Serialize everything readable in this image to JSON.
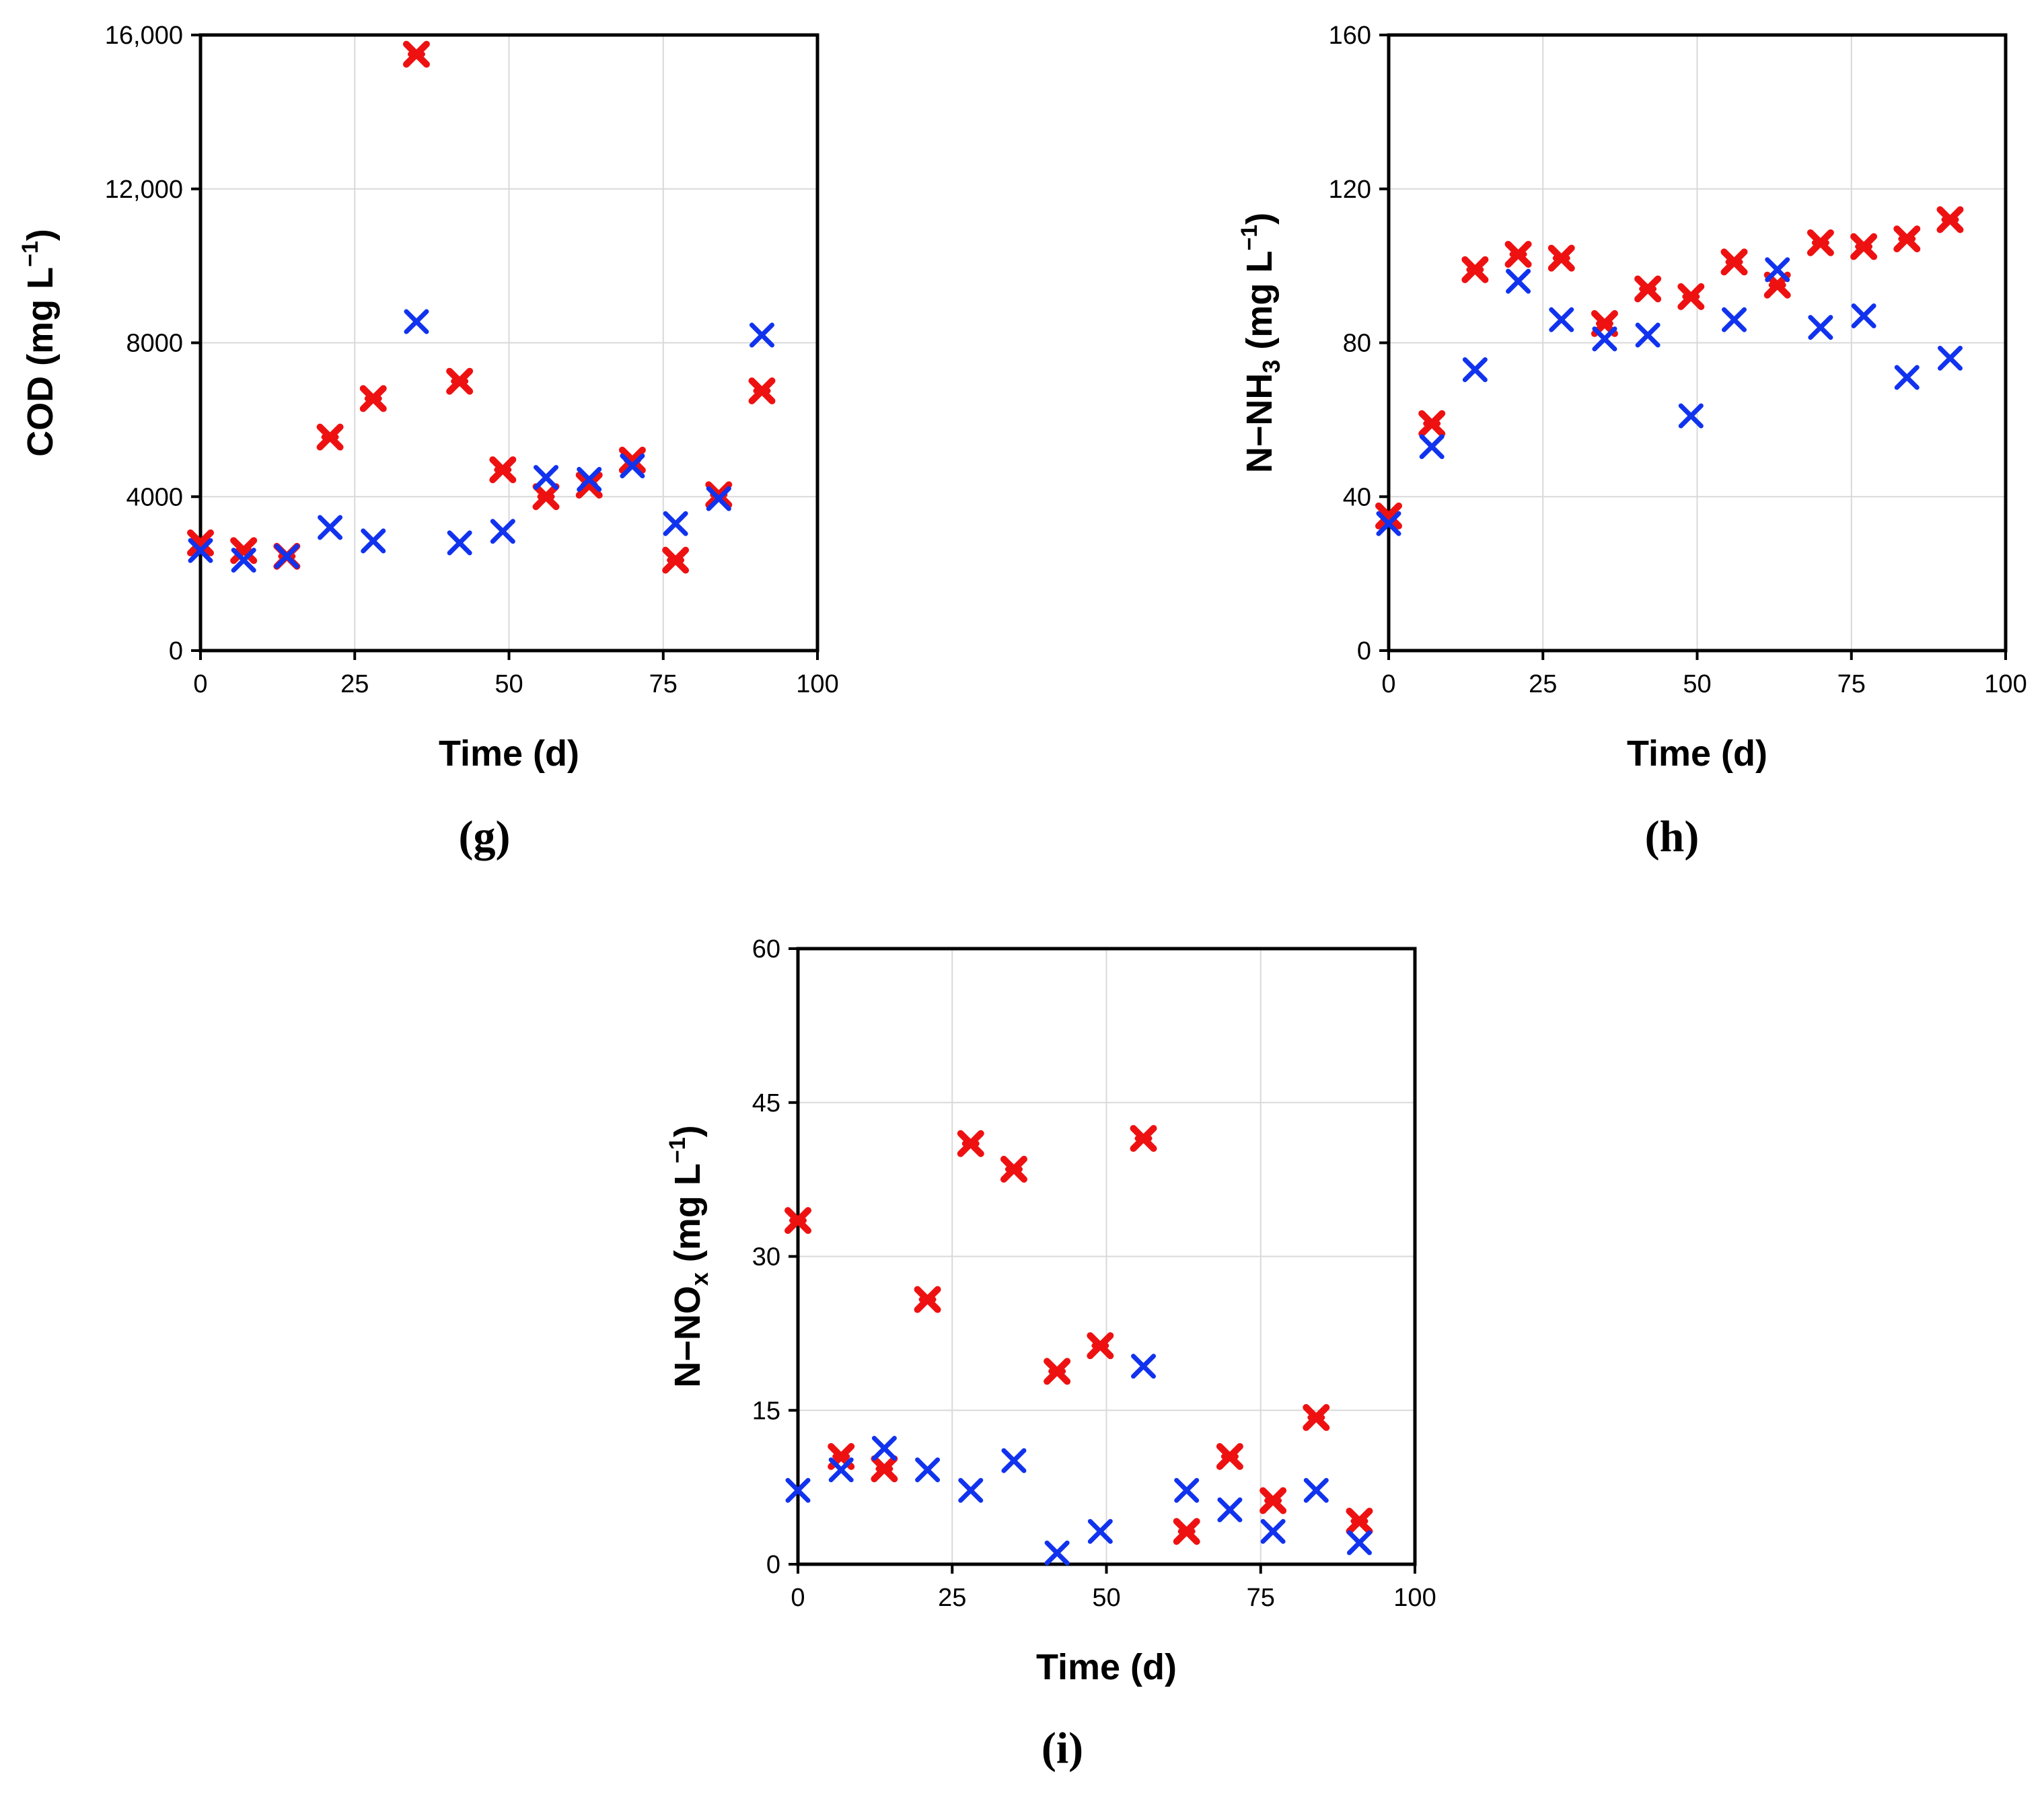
{
  "colors": {
    "red": "#ee1111",
    "blue": "#1133ee"
  },
  "chart_data": [
    {
      "id": "g",
      "type": "scatter",
      "panel_label": "(g)",
      "xlabel": "Time (d)",
      "ylabel": {
        "main": "COD (mg L",
        "sup": "−1",
        "end": ")"
      },
      "xlim": [
        0,
        100
      ],
      "ylim": [
        0,
        16000
      ],
      "xticks": [
        0,
        25,
        50,
        75,
        100
      ],
      "yticks": [
        0,
        4000,
        8000,
        12000,
        16000
      ],
      "xtick_labels": [
        "0",
        "25",
        "50",
        "75",
        "100"
      ],
      "ytick_labels": [
        "0",
        "4000",
        "8000",
        "12,000",
        "16,000"
      ],
      "grid": true,
      "series": [
        {
          "color": "#ee1111",
          "marker": "x-bold",
          "x": [
            0,
            7,
            14,
            21,
            28,
            35,
            42,
            49,
            56,
            63,
            70,
            77,
            84,
            91
          ],
          "y": [
            2800,
            2600,
            2450,
            5550,
            6550,
            15500,
            7000,
            4700,
            4000,
            4300,
            4950,
            2350,
            4050,
            6750
          ]
        },
        {
          "color": "#1133ee",
          "marker": "x",
          "x": [
            0,
            7,
            14,
            21,
            28,
            35,
            42,
            49,
            56,
            63,
            70,
            77,
            84,
            91
          ],
          "y": [
            2600,
            2350,
            2450,
            3200,
            2850,
            8550,
            2800,
            3100,
            4500,
            4450,
            4800,
            3300,
            3950,
            8200
          ]
        }
      ]
    },
    {
      "id": "h",
      "type": "scatter",
      "panel_label": "(h)",
      "xlabel": "Time (d)",
      "ylabel": {
        "main": "N−NH",
        "sub": "3",
        "mid": " (mg L",
        "sup": "−1",
        "end": ")"
      },
      "xlim": [
        0,
        100
      ],
      "ylim": [
        0,
        160
      ],
      "xticks": [
        0,
        25,
        50,
        75,
        100
      ],
      "yticks": [
        0,
        40,
        80,
        120,
        160
      ],
      "xtick_labels": [
        "0",
        "25",
        "50",
        "75",
        "100"
      ],
      "ytick_labels": [
        "0",
        "40",
        "80",
        "120",
        "160"
      ],
      "grid": true,
      "series": [
        {
          "color": "#ee1111",
          "marker": "x-bold",
          "x": [
            0,
            7,
            14,
            21,
            28,
            35,
            42,
            49,
            56,
            63,
            70,
            77,
            84,
            91
          ],
          "y": [
            35,
            59,
            99,
            103,
            102,
            85,
            94,
            92,
            101,
            95,
            106,
            105,
            107,
            112
          ]
        },
        {
          "color": "#1133ee",
          "marker": "x",
          "x": [
            0,
            7,
            14,
            21,
            28,
            35,
            42,
            49,
            56,
            63,
            70,
            77,
            84,
            91
          ],
          "y": [
            33,
            53,
            73,
            96,
            86,
            81,
            82,
            61,
            86,
            99,
            84,
            87,
            71,
            76
          ]
        }
      ]
    },
    {
      "id": "i",
      "type": "scatter",
      "panel_label": "(i)",
      "xlabel": "Time (d)",
      "ylabel": {
        "main": "N−NO",
        "sub": "x",
        "mid": " (mg L",
        "sup": "−1",
        "end": ")"
      },
      "xlim": [
        0,
        100
      ],
      "ylim": [
        0,
        60
      ],
      "xticks": [
        0,
        25,
        50,
        75,
        100
      ],
      "yticks": [
        0,
        15,
        30,
        45,
        60
      ],
      "xtick_labels": [
        "0",
        "25",
        "50",
        "75",
        "100"
      ],
      "ytick_labels": [
        "0",
        "15",
        "30",
        "45",
        "60"
      ],
      "grid": true,
      "series": [
        {
          "color": "#ee1111",
          "marker": "x-bold",
          "x": [
            0,
            7,
            14,
            21,
            28,
            35,
            42,
            49,
            56,
            63,
            70,
            77,
            84,
            91
          ],
          "y": [
            33.5,
            10.5,
            9.3,
            25.8,
            41,
            38.5,
            18.8,
            21.3,
            41.5,
            3.2,
            10.5,
            6.2,
            14.3,
            4.2
          ]
        },
        {
          "color": "#1133ee",
          "marker": "x",
          "x": [
            0,
            7,
            14,
            21,
            28,
            35,
            42,
            49,
            56,
            63,
            70,
            77,
            84,
            91
          ],
          "y": [
            7.2,
            9.2,
            11.3,
            9.2,
            7.2,
            10.1,
            1.1,
            3.2,
            19.3,
            7.2,
            5.3,
            3.2,
            7.2,
            2.1
          ]
        }
      ]
    }
  ]
}
